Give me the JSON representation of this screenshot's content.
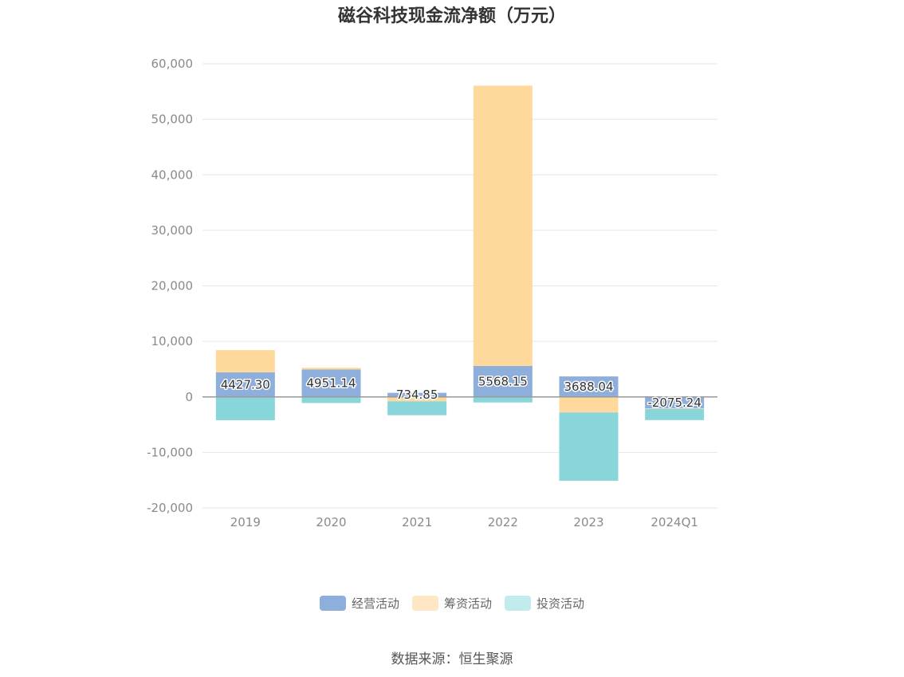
{
  "chart_data": {
    "type": "bar",
    "stacked": true,
    "title": "磁谷科技现金流净额（万元）",
    "categories": [
      "2019",
      "2020",
      "2021",
      "2022",
      "2023",
      "2024Q1"
    ],
    "series": [
      {
        "name": "经营活动",
        "color": "#8eaedc",
        "values": [
          4427.3,
          4951.14,
          734.85,
          5568.15,
          3688.04,
          -2075.24
        ]
      },
      {
        "name": "筹资活动",
        "color": "#ffd99b",
        "values": [
          4000,
          300,
          -800,
          50500,
          -2800,
          -100
        ]
      },
      {
        "name": "投资活动",
        "color": "#89d6da",
        "values": [
          -4200,
          -1100,
          -2500,
          -1000,
          -12300,
          -2000
        ]
      }
    ],
    "data_labels": [
      "4427.30",
      "4951.14",
      "734.85",
      "5568.15",
      "3688.04",
      "-2075.24"
    ],
    "ylim": [
      -20000,
      60000
    ],
    "yticks": [
      "60,000",
      "50,000",
      "40,000",
      "30,000",
      "20,000",
      "10,000",
      "0",
      "-10,000",
      "-20,000"
    ],
    "grid": true,
    "legend_position": "bottom",
    "legend_colors": [
      "#8eaedc",
      "#ffe6c4",
      "#c2ebed"
    ]
  },
  "source": "数据来源：恒生聚源"
}
